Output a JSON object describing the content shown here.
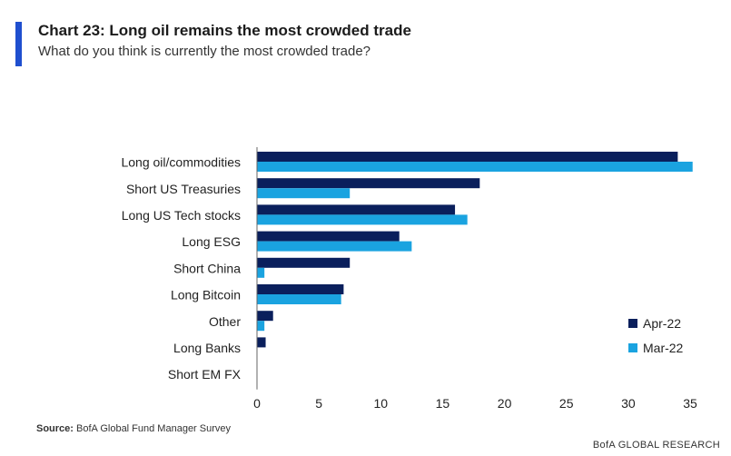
{
  "header": {
    "title": "Chart 23: Long oil remains the most crowded trade",
    "subtitle": "What do you think is currently the most crowded trade?"
  },
  "footer": {
    "source_label": "Source:",
    "source_text": "BofA Global Fund Manager Survey",
    "brand": "BofA GLOBAL RESEARCH"
  },
  "colors": {
    "accent": "#1f4fcf",
    "apr": "#0a1f5c",
    "mar": "#1aa3e0"
  },
  "chart_data": {
    "type": "bar",
    "orientation": "horizontal",
    "categories": [
      "Long oil/commodities",
      "Short US Treasuries",
      "Long US Tech stocks",
      "Long ESG",
      "Short China",
      "Long Bitcoin",
      "Other",
      "Long Banks",
      "Short EM FX"
    ],
    "series": [
      {
        "name": "Apr-22",
        "color": "#0a1f5c",
        "values": [
          34,
          18,
          16,
          11.5,
          7.5,
          7,
          1.3,
          0.7,
          0
        ]
      },
      {
        "name": "Mar-22",
        "color": "#1aa3e0",
        "values": [
          35.2,
          7.5,
          17,
          12.5,
          0.6,
          6.8,
          0.6,
          0,
          0
        ]
      }
    ],
    "xlim": [
      0,
      35
    ],
    "xticks": [
      0,
      5,
      10,
      15,
      20,
      25,
      30,
      35
    ],
    "grid": false,
    "legend_position": "bottom-right"
  }
}
